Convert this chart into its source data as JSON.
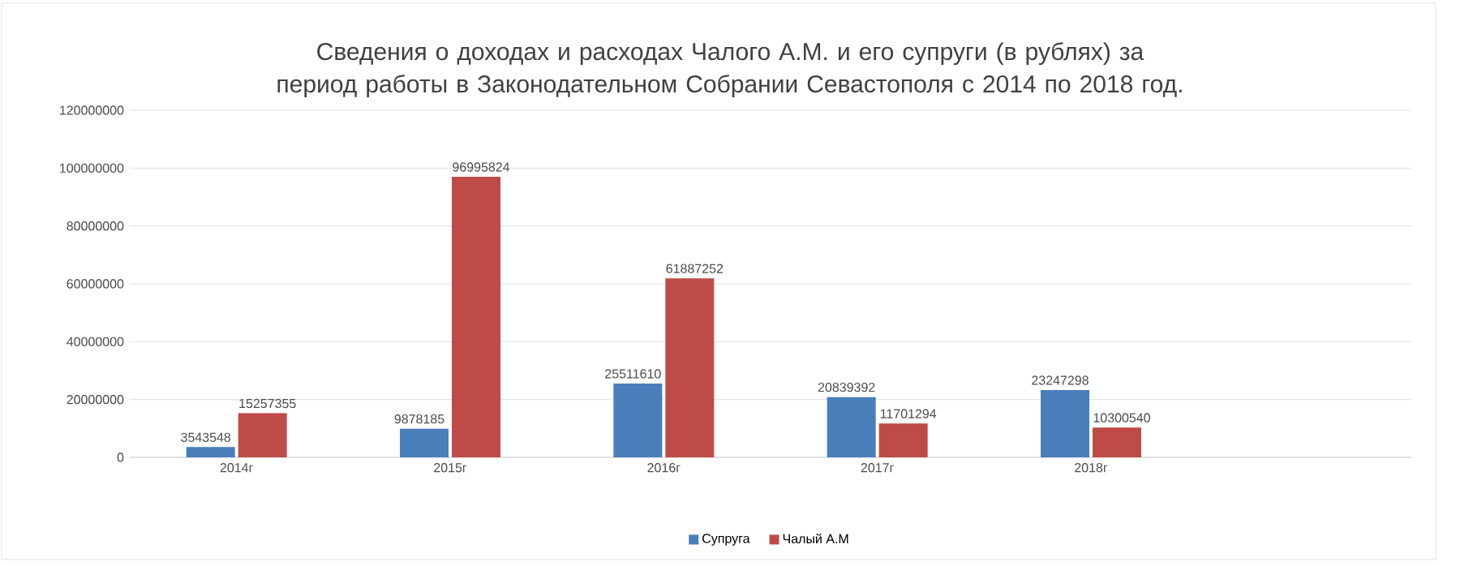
{
  "chart_data": {
    "type": "bar",
    "title": "Сведения о доходах и расходах Чалого А.М. и его супруги (в рублях) за период работы в Законодательном Собрании Севастополя с 2014 по 2018 год.",
    "categories": [
      "2014г",
      "2015г",
      "2016г",
      "2017г",
      "2018г",
      null
    ],
    "series": [
      {
        "name": "Супруга",
        "color": "#4a7ebb",
        "values": [
          3543548,
          9878185,
          25511610,
          20839392,
          23247298,
          null
        ]
      },
      {
        "name": "Чалый А.М",
        "color": "#be4b48",
        "values": [
          15257355,
          96995824,
          61887252,
          11701294,
          10300540,
          null
        ]
      }
    ],
    "ylim": [
      0,
      120000000
    ],
    "yticks": [
      0,
      20000000,
      40000000,
      60000000,
      80000000,
      100000000,
      120000000
    ],
    "grid": "y",
    "legend": "bottom",
    "data_labels": true
  }
}
